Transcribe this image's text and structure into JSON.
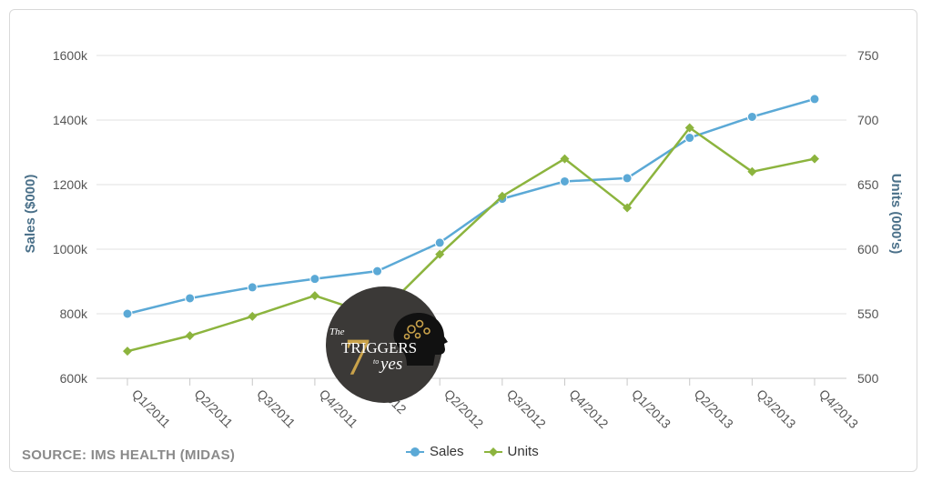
{
  "source_label": "SOURCE:  IMS HEALTH (MIDAS)",
  "logo": {
    "text_the": "The",
    "text_seven": "7",
    "text_triggers": "TRIGGERS",
    "text_to": "to",
    "text_yes": "yes"
  },
  "colors": {
    "sales": "#5ba9d6",
    "units": "#8cb43e",
    "grid": "#e0e0e0",
    "axis_title": "#4a7089"
  },
  "chart_data": {
    "type": "line",
    "categories": [
      "Q1/2011",
      "Q2/2011",
      "Q3/2011",
      "Q4/2011",
      "Q1/2012",
      "Q2/2012",
      "Q3/2012",
      "Q4/2012",
      "Q1/2013",
      "Q2/2013",
      "Q3/2013",
      "Q4/2013"
    ],
    "visible_category_labels": [
      "Q1/2011",
      "Q2/2011",
      "Q3/2011",
      "Q4/2011",
      "2012",
      "Q2/2012",
      "Q3/2012",
      "Q4/2012",
      "Q1/2013",
      "Q2/2013",
      "Q3/2013",
      "Q4/2013"
    ],
    "ylabel": "Sales ($000)",
    "y2label": "Units (000's)",
    "ylim": [
      600,
      1600
    ],
    "y2lim": [
      500,
      750
    ],
    "yticks": [
      "600k",
      "800k",
      "1000k",
      "1200k",
      "1400k",
      "1600k"
    ],
    "y2ticks": [
      "500",
      "550",
      "600",
      "650",
      "700",
      "750"
    ],
    "grid": true,
    "legend_position": "bottom-center",
    "series": [
      {
        "name": "Sales",
        "axis": "left",
        "marker": "circle",
        "values": [
          800,
          848,
          882,
          908,
          932,
          1020,
          1156,
          1210,
          1220,
          1345,
          1410,
          1465
        ]
      },
      {
        "name": "Units",
        "axis": "right",
        "marker": "diamond",
        "values": [
          521,
          533,
          548,
          564,
          548,
          596,
          641,
          670,
          632,
          694,
          660,
          670
        ]
      }
    ]
  }
}
